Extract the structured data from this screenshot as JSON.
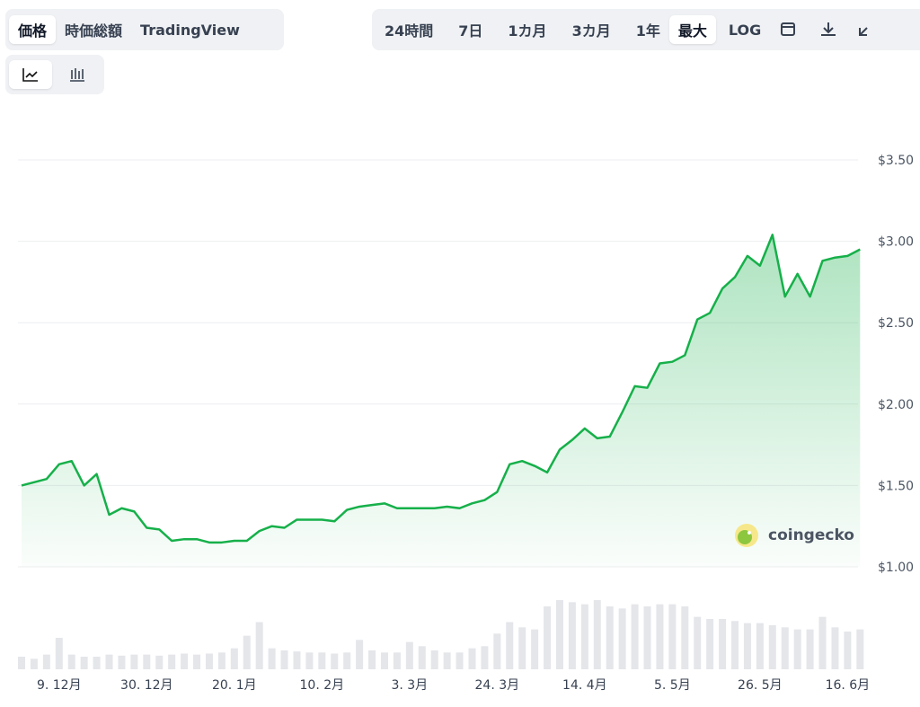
{
  "toolbar": {
    "views": [
      "価格",
      "時価総額",
      "TradingView"
    ],
    "ranges": [
      "24時間",
      "7日",
      "1カ月",
      "3カ月",
      "1年",
      "最大",
      "LOG"
    ]
  },
  "chart_data": {
    "type": "line",
    "x": [
      "30. 11月",
      "3. 12月",
      "6. 12月",
      "9. 12月",
      "12. 12月",
      "15. 12月",
      "18. 12月",
      "21. 12月",
      "24. 12月",
      "27. 12月",
      "30. 12月",
      "2. 1月",
      "5. 1月",
      "8. 1月",
      "11. 1月",
      "14. 1月",
      "17. 1月",
      "20. 1月",
      "23. 1月",
      "26. 1月",
      "29. 1月",
      "1. 2月",
      "4. 2月",
      "7. 2月",
      "10. 2月",
      "13. 2月",
      "16. 2月",
      "19. 2月",
      "22. 2月",
      "25. 2月",
      "28. 2月",
      "3. 3月",
      "6. 3月",
      "9. 3月",
      "12. 3月",
      "15. 3月",
      "18. 3月",
      "21. 3月",
      "24. 3月",
      "27. 3月",
      "30. 3月",
      "2. 4月",
      "5. 4月",
      "8. 4月",
      "11. 4月",
      "14. 4月",
      "17. 4月",
      "20. 4月",
      "23. 4月",
      "26. 4月",
      "29. 4月",
      "2. 5月",
      "5. 5月",
      "8. 5月",
      "11. 5月",
      "14. 5月",
      "17. 5月",
      "20. 5月",
      "23. 5月",
      "26. 5月",
      "29. 5月",
      "1. 6月",
      "4. 6月",
      "7. 6月",
      "10. 6月",
      "13. 6月",
      "16. 6月",
      "19. 6月"
    ],
    "series": [
      {
        "color": "#16b04a",
        "values": [
          1.5,
          1.52,
          1.54,
          1.63,
          1.65,
          1.5,
          1.57,
          1.32,
          1.36,
          1.34,
          1.24,
          1.23,
          1.16,
          1.17,
          1.17,
          1.15,
          1.15,
          1.16,
          1.16,
          1.22,
          1.25,
          1.24,
          1.29,
          1.29,
          1.29,
          1.28,
          1.35,
          1.37,
          1.38,
          1.39,
          1.36,
          1.36,
          1.36,
          1.36,
          1.37,
          1.36,
          1.39,
          1.41,
          1.46,
          1.63,
          1.65,
          1.62,
          1.58,
          1.72,
          1.78,
          1.85,
          1.79,
          1.8,
          1.95,
          2.11,
          2.1,
          2.25,
          2.26,
          2.3,
          2.52,
          2.56,
          2.71,
          2.78,
          2.91,
          2.85,
          3.04,
          2.66,
          2.8,
          2.66,
          2.88,
          2.9,
          2.91,
          2.95
        ]
      }
    ],
    "volume": {
      "color": "#e4e6ea",
      "values": [
        12,
        10,
        14,
        30,
        14,
        12,
        12,
        14,
        13,
        14,
        14,
        13,
        14,
        15,
        14,
        15,
        16,
        20,
        32,
        45,
        20,
        18,
        17,
        16,
        16,
        15,
        16,
        28,
        18,
        16,
        16,
        26,
        22,
        18,
        16,
        16,
        20,
        22,
        34,
        45,
        40,
        38,
        60,
        66,
        64,
        62,
        66,
        60,
        58,
        62,
        60,
        62,
        62,
        60,
        50,
        48,
        48,
        46,
        44,
        44,
        42,
        40,
        38,
        38,
        50,
        40,
        36,
        38
      ]
    },
    "ylim": [
      1.0,
      3.5
    ],
    "yticks": [
      {
        "value": 1.0,
        "label": "$1.00"
      },
      {
        "value": 1.5,
        "label": "$1.50"
      },
      {
        "value": 2.0,
        "label": "$2.00"
      },
      {
        "value": 2.5,
        "label": "$2.50"
      },
      {
        "value": 3.0,
        "label": "$3.00"
      },
      {
        "value": 3.5,
        "label": "$3.50"
      }
    ],
    "xticks": [
      "9. 12月",
      "30. 12月",
      "20. 1月",
      "10. 2月",
      "3. 3月",
      "24. 3月",
      "14. 4月",
      "5. 5月",
      "26. 5月",
      "16. 6月"
    ],
    "grid": true,
    "watermark": "coingecko"
  }
}
